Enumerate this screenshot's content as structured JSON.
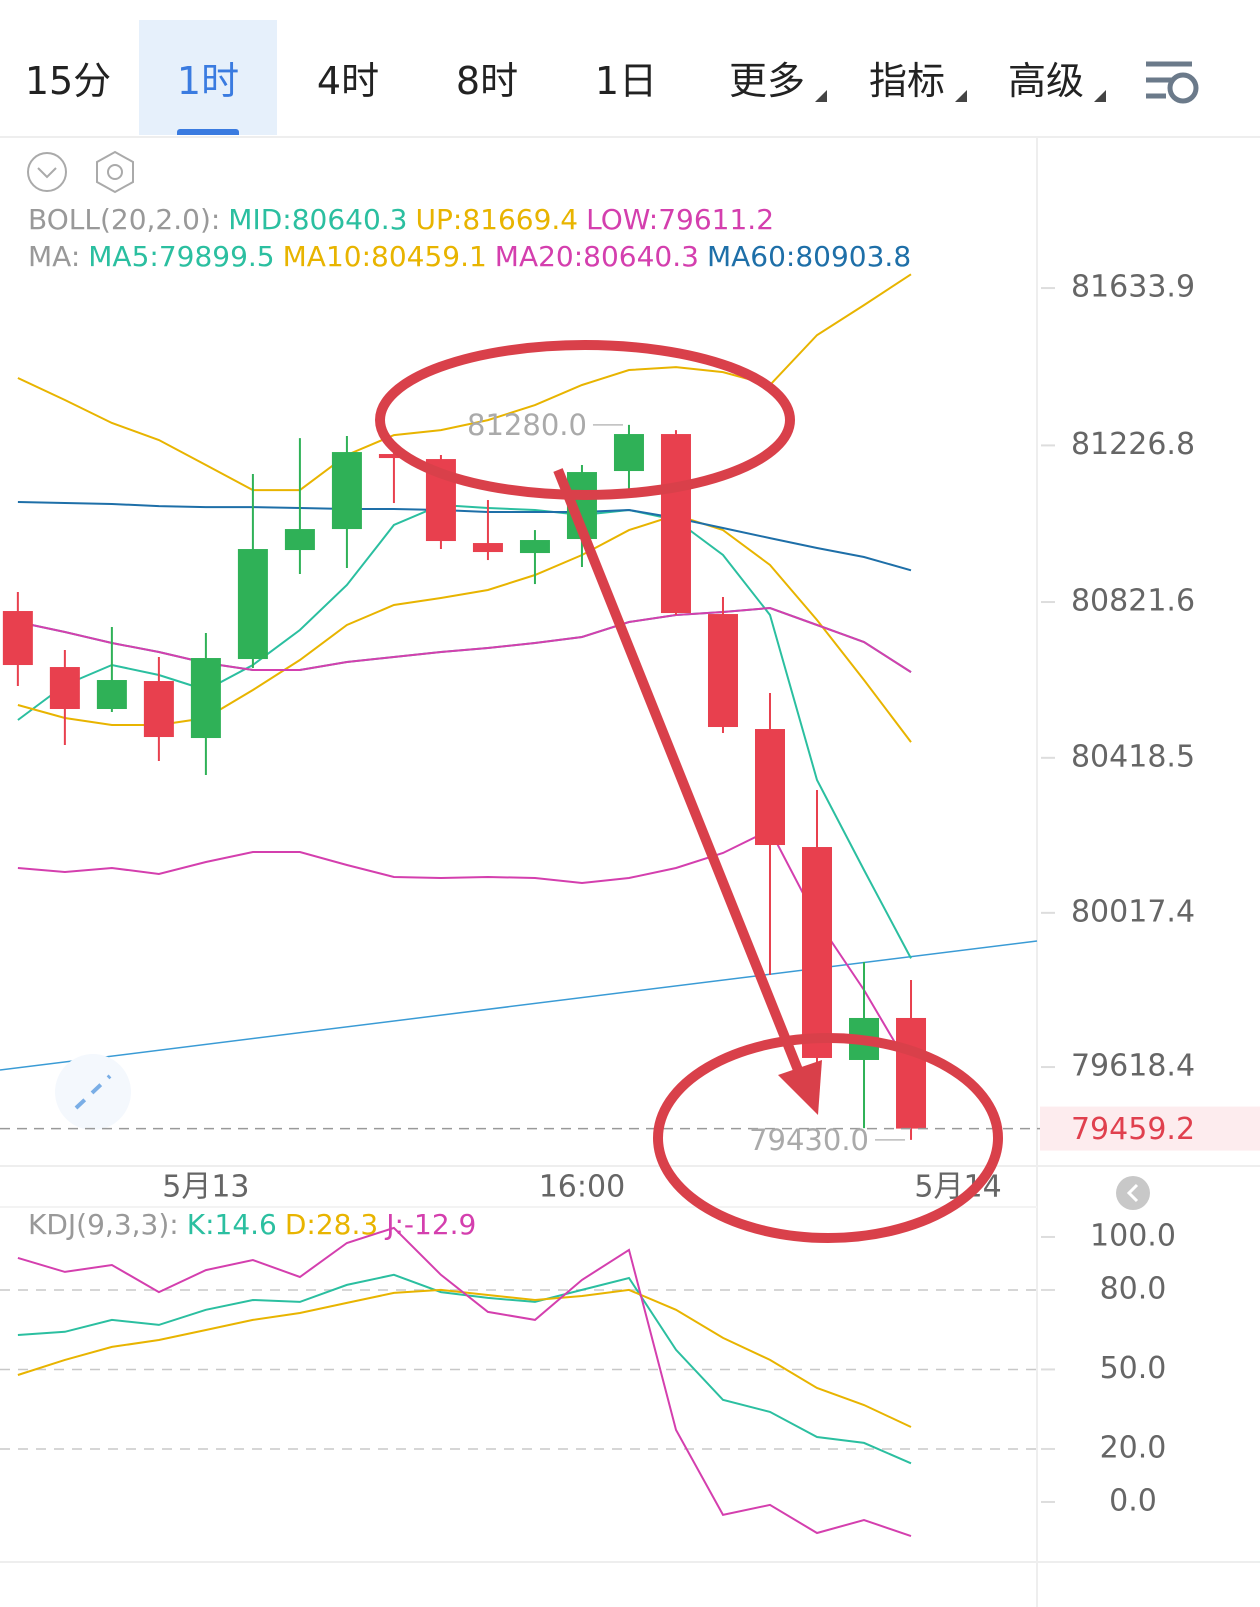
{
  "tabs": [
    "15分",
    "1时",
    "4时",
    "8时",
    "1日",
    "更多",
    "指标",
    "高级"
  ],
  "active_tab": 1,
  "chart_data": [
    {
      "type": "candlestick",
      "categories": [
        null,
        null,
        null,
        null,
        "5月13",
        null,
        null,
        null,
        null,
        null,
        null,
        null,
        "16:00",
        null,
        null,
        null,
        null,
        null,
        null,
        null,
        "5月14"
      ],
      "xlim": [
        -0.38,
        21.68
      ],
      "ylim": [
        79365,
        82017
      ],
      "yticks": [
        81633.9,
        81226.8,
        80821.6,
        80418.5,
        80017.4,
        79618.4
      ],
      "up_color": "#2fb157",
      "down_color": "#e8404e",
      "open": [
        80798.3,
        80653.4,
        80544.8,
        80617.2,
        80469.7,
        80674.1,
        80956.1,
        81010.4,
        81204.5,
        81191.5,
        80974.2,
        80948.3,
        80984.6,
        81160.5,
        81256.2,
        80790.5,
        80493.0,
        80187.7,
        79636.7,
        79745.4,
        null
      ],
      "high": [
        80847.5,
        80697.4,
        80756.9,
        80679.3,
        80741.4,
        81152.7,
        81245.8,
        81251.0,
        81212.2,
        81201.9,
        81085.5,
        81007.8,
        81176.0,
        81280.0,
        81266.5,
        80834.5,
        80586.2,
        80335.2,
        79890.3,
        79843.7,
        null
      ],
      "low": [
        80604.3,
        80451.6,
        80537.0,
        80410.2,
        80374.0,
        80650.8,
        80894.0,
        80909.5,
        81077.7,
        80958.7,
        80930.2,
        80868.1,
        80912.1,
        81106.2,
        80787.9,
        80482.7,
        79856.6,
        79559.1,
        79460.5,
        79430.0,
        null
      ],
      "close": [
        80658.6,
        80544.8,
        80619.8,
        80472.3,
        80676.7,
        80958.7,
        81010.4,
        81209.6,
        81194.1,
        80979.4,
        80950.9,
        80982.0,
        81157.9,
        81256.2,
        80793.1,
        80498.2,
        80192.9,
        79641.9,
        79745.4,
        79459.2,
        null
      ],
      "last_price": 79459.2,
      "high_label": {
        "value": 81280.0,
        "label": "81280.0"
      },
      "low_label": {
        "value": 79430.0,
        "label": "79430.0"
      },
      "groups": [
        {
          "label": "BOLL(20,2.0):",
          "series": [
            {
              "name": "MID:80640.3",
              "color": "#2bbfa0",
              "values": [
                80769.8,
                80744.0,
                80715.5,
                80692.2,
                80663.8,
                80645.7,
                80645.7,
                80666.4,
                80679.3,
                80692.2,
                80702.6,
                80715.5,
                80731.0,
                80769.8,
                80787.9,
                80795.7,
                80806.1,
                80762.1,
                80718.1,
                80640.3,
                null
              ]
            },
            {
              "name": "UP:81669.4",
              "color": "#e8b400",
              "values": [
                81401.1,
                81344.2,
                81284.7,
                81240.7,
                81176.0,
                81111.3,
                81111.3,
                81201.9,
                81253.6,
                81266.5,
                81292.4,
                81331.2,
                81383.0,
                81421.8,
                81429.5,
                81416.6,
                81383.0,
                81512.3,
                81589.9,
                81669.4,
                null
              ]
            },
            {
              "name": "LOW:79611.2",
              "color": "#d43fae",
              "values": [
                80133.4,
                80123.1,
                80133.4,
                80117.9,
                80149.0,
                80174.8,
                80174.8,
                80141.2,
                80110.2,
                80107.6,
                80110.2,
                80107.6,
                80094.6,
                80107.6,
                80133.4,
                80172.2,
                80231.7,
                79998.9,
                79817.8,
                79611.2,
                null
              ]
            }
          ]
        },
        {
          "label": "MA:",
          "series": [
            {
              "name": "MA5:79899.5",
              "color": "#2bbfa0",
              "values": [
                80516.3,
                80606.9,
                80658.6,
                80632.7,
                80593.9,
                80658.6,
                80749.1,
                80865.6,
                81020.8,
                81072.5,
                81064.8,
                81059.6,
                81046.7,
                81059.6,
                81033.7,
                80943.2,
                80787.9,
                80361.1,
                80128.3,
                79899.5,
                null
              ]
            },
            {
              "name": "MA10:80459.1",
              "color": "#e8b400",
              "values": [
                80555.1,
                80521.5,
                80503.4,
                80503.4,
                80521.5,
                80593.9,
                80671.5,
                80762.1,
                80813.8,
                80831.9,
                80852.6,
                80891.4,
                80943.2,
                81007.8,
                81046.7,
                81007.8,
                80917.3,
                80775.0,
                80619.8,
                80459.1,
                null
              ]
            },
            {
              "name": "MA20:80640.3",
              "color": "#d43fae",
              "values": [
                80769.8,
                80744.0,
                80715.5,
                80692.2,
                80663.8,
                80645.7,
                80645.7,
                80666.4,
                80679.3,
                80692.2,
                80702.6,
                80715.5,
                80731.0,
                80769.8,
                80787.9,
                80795.7,
                80806.1,
                80762.1,
                80718.1,
                80640.3,
                null
              ]
            },
            {
              "name": "MA60:80903.8",
              "color": "#1e6fa8",
              "values": [
                81080.3,
                81077.7,
                81075.1,
                81069.9,
                81067.3,
                81067.3,
                81064.8,
                81062.2,
                81062.2,
                81059.6,
                81054.4,
                81054.4,
                81054.4,
                81059.6,
                81038.9,
                81013.0,
                80987.1,
                80961.3,
                80938.0,
                80903.8,
                null
              ]
            }
          ]
        }
      ]
    },
    {
      "type": "line",
      "xlim": [
        -0.38,
        21.68
      ],
      "ylim": [
        -21.9,
        111.3
      ],
      "yticks": [
        {
          "value": 100,
          "label": "100.0"
        },
        {
          "value": 80,
          "label": "80.0"
        },
        {
          "value": 50,
          "label": "50.0"
        },
        {
          "value": 20,
          "label": "20.0"
        },
        {
          "value": 0,
          "label": "0.0"
        }
      ],
      "grid": true,
      "groups": [
        {
          "label": "KDJ(9,3,3):",
          "series": [
            {
              "name": "K:14.6",
              "color": "#2bbfa0",
              "values": [
                63.0,
                64.2,
                68.7,
                66.8,
                72.5,
                76.2,
                75.5,
                81.9,
                85.7,
                79.2,
                77.0,
                75.5,
                80.0,
                84.5,
                57.4,
                38.5,
                34.0,
                24.5,
                22.3,
                14.6
              ]
            },
            {
              "name": "D:28.3",
              "color": "#e8b400",
              "values": [
                47.9,
                53.6,
                58.5,
                61.1,
                64.9,
                68.7,
                71.3,
                75.1,
                78.9,
                80.0,
                78.1,
                76.2,
                77.7,
                80.0,
                72.5,
                61.9,
                53.6,
                43.0,
                36.6,
                28.3
              ]
            },
            {
              "name": "J:-12.9",
              "color": "#d43fae",
              "values": [
                92.1,
                86.8,
                89.4,
                79.2,
                87.5,
                91.3,
                84.9,
                97.7,
                103.4,
                85.7,
                71.7,
                68.7,
                83.8,
                95.1,
                27.2,
                -4.9,
                -1.1,
                -11.7,
                -6.8,
                -12.9
              ]
            }
          ]
        }
      ]
    }
  ]
}
